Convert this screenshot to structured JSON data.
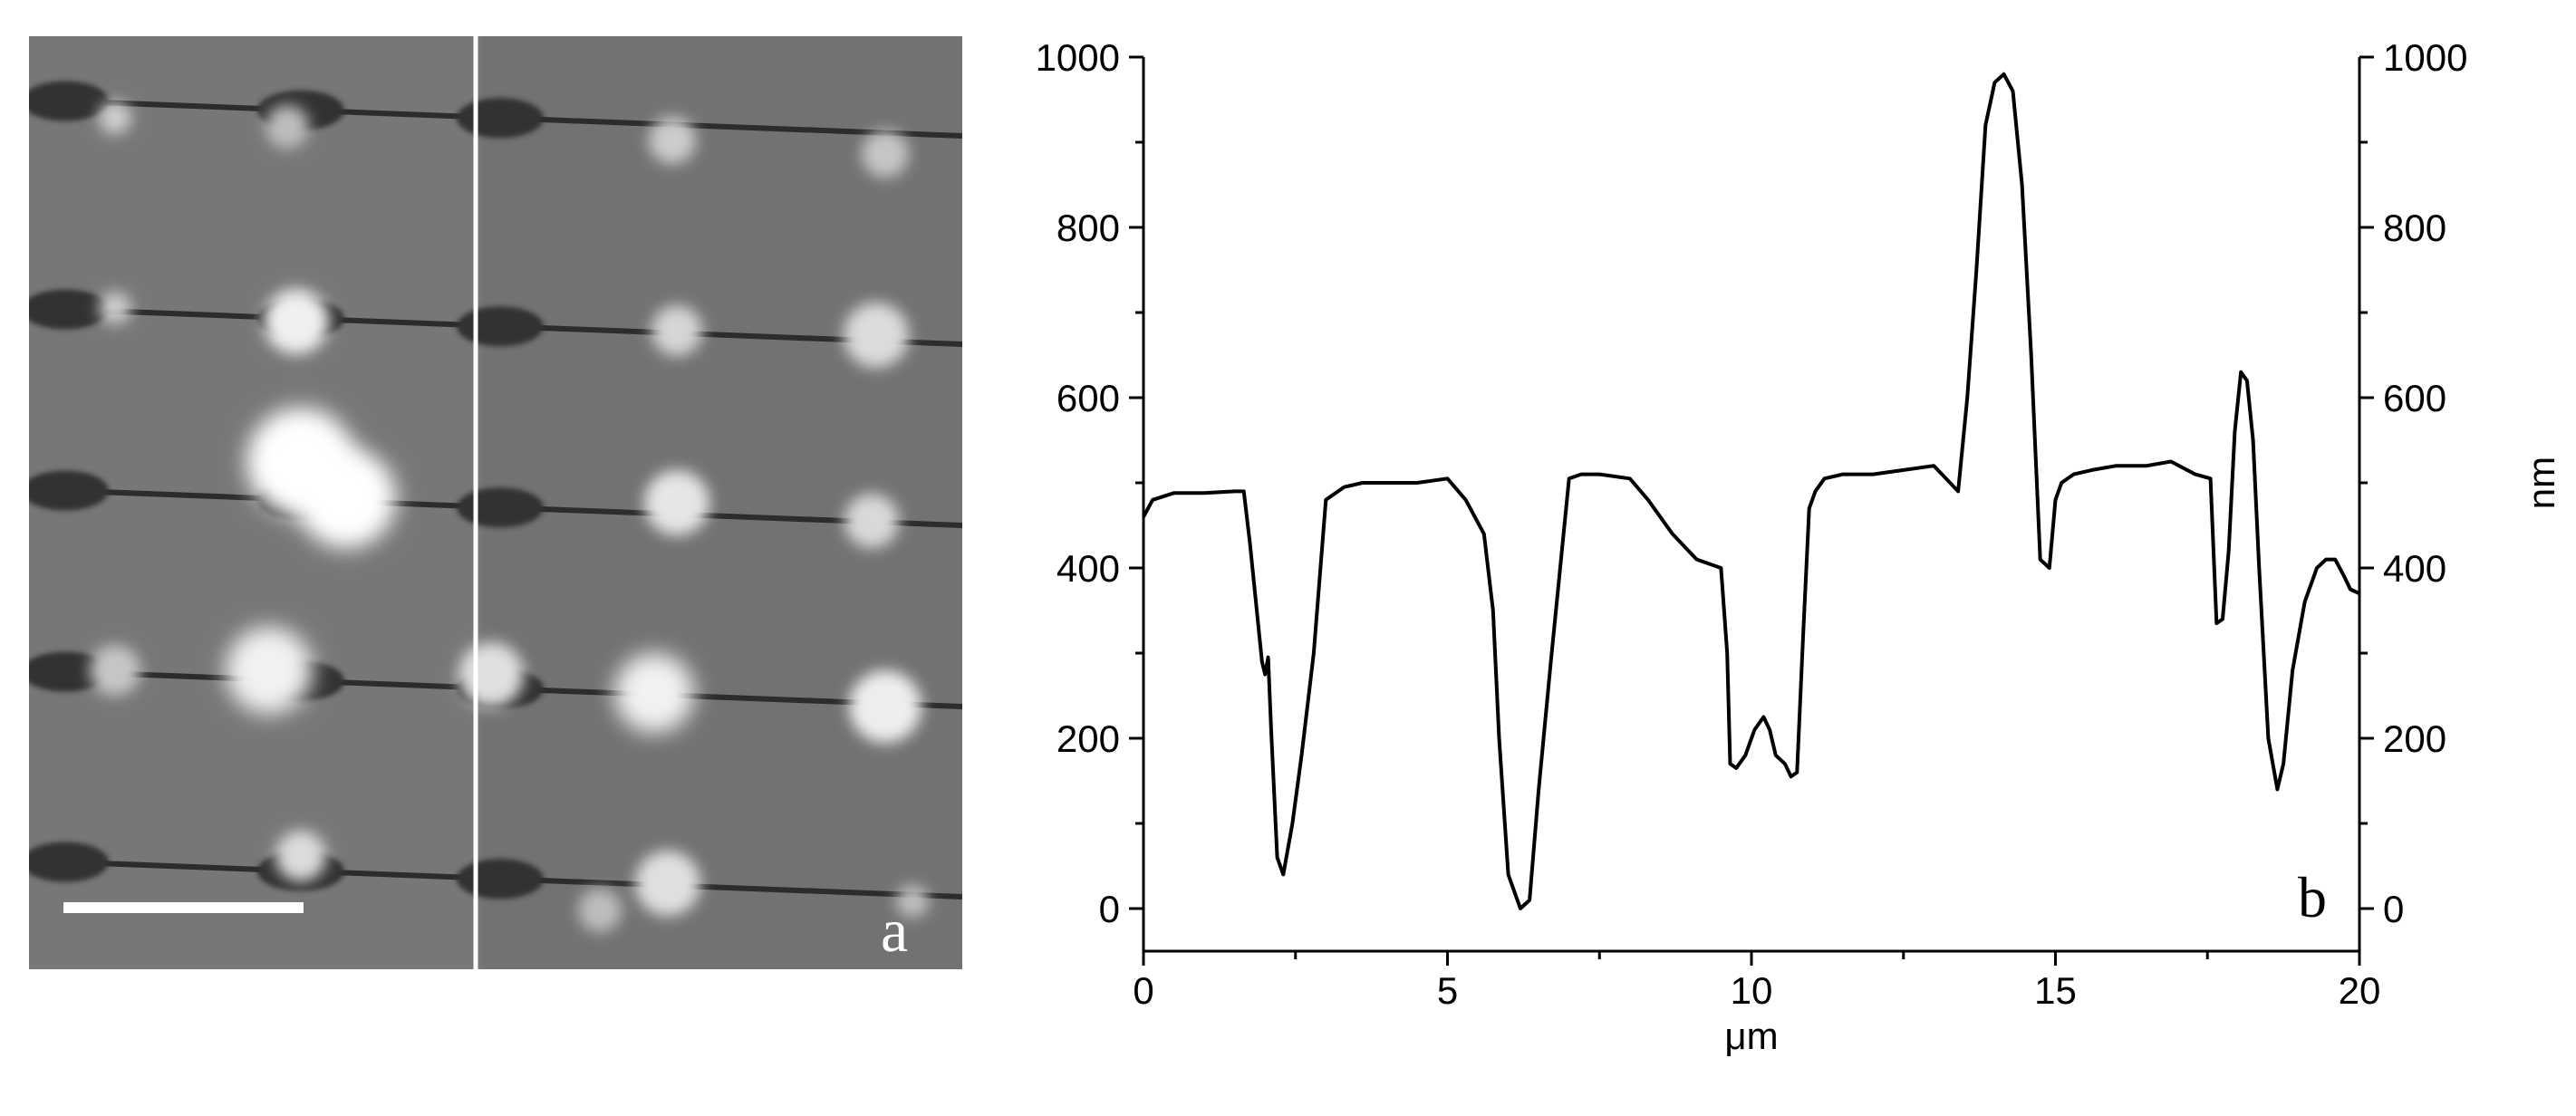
{
  "panels": {
    "a": {
      "letter": "a"
    },
    "b": {
      "letter": "b"
    }
  },
  "chart_data": {
    "type": "line",
    "xlabel": "μm",
    "ylabel_right": "nm",
    "xlim": [
      0,
      20
    ],
    "ylim": [
      -50,
      1000
    ],
    "xticks": [
      0,
      5,
      10,
      15,
      20
    ],
    "yticks": [
      0,
      200,
      400,
      600,
      800,
      1000
    ],
    "grid": false,
    "series": [
      {
        "color": "#000000",
        "x": [
          0,
          0.15,
          0.5,
          1.0,
          1.5,
          1.65,
          1.75,
          1.85,
          1.95,
          2.0,
          2.05,
          2.1,
          2.2,
          2.3,
          2.45,
          2.6,
          2.8,
          3.0,
          3.3,
          3.6,
          4.0,
          4.5,
          5.0,
          5.3,
          5.6,
          5.75,
          5.85,
          6.0,
          6.2,
          6.35,
          6.5,
          6.7,
          7.0,
          7.2,
          7.5,
          8.0,
          8.3,
          8.7,
          9.1,
          9.5,
          9.6,
          9.65,
          9.75,
          9.9,
          10.05,
          10.2,
          10.3,
          10.4,
          10.55,
          10.65,
          10.75,
          10.85,
          10.95,
          11.05,
          11.2,
          11.5,
          12.0,
          12.5,
          13.0,
          13.2,
          13.4,
          13.55,
          13.7,
          13.85,
          14.0,
          14.15,
          14.3,
          14.45,
          14.6,
          14.75,
          14.9,
          15.0,
          15.1,
          15.3,
          15.6,
          16.0,
          16.5,
          16.9,
          17.3,
          17.55,
          17.65,
          17.75,
          17.85,
          17.95,
          18.05,
          18.15,
          18.25,
          18.35,
          18.5,
          18.65,
          18.75,
          18.9,
          19.1,
          19.3,
          19.45,
          19.6,
          19.75,
          19.85,
          20.0
        ],
        "values": [
          460,
          480,
          488,
          488,
          490,
          490,
          430,
          360,
          290,
          275,
          295,
          210,
          60,
          40,
          100,
          180,
          300,
          480,
          495,
          500,
          500,
          500,
          505,
          480,
          440,
          350,
          200,
          40,
          0,
          10,
          140,
          290,
          505,
          510,
          510,
          505,
          480,
          440,
          410,
          400,
          300,
          170,
          165,
          180,
          210,
          225,
          210,
          180,
          170,
          155,
          160,
          320,
          470,
          490,
          505,
          510,
          510,
          515,
          520,
          505,
          490,
          600,
          750,
          920,
          970,
          980,
          960,
          850,
          650,
          410,
          400,
          480,
          500,
          510,
          515,
          520,
          520,
          525,
          510,
          505,
          335,
          340,
          420,
          560,
          630,
          620,
          550,
          400,
          200,
          140,
          170,
          280,
          360,
          400,
          410,
          410,
          390,
          375,
          370
        ]
      }
    ]
  },
  "colors": {
    "afm_background": "#777777",
    "axis": "#000000",
    "trace": "#000000",
    "scale_bar": "#ffffff",
    "scan_line": "#ffffff"
  }
}
